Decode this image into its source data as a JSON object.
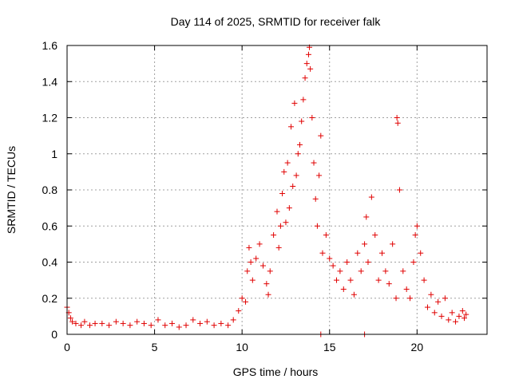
{
  "chart_data": {
    "type": "scatter",
    "title": "Day 114 of 2025, SRMTID for receiver falk",
    "xlabel": "GPS time / hours",
    "ylabel": "SRMTID / TECUs",
    "xlim": [
      0,
      24
    ],
    "ylim": [
      0,
      1.6
    ],
    "x_ticks": [
      0,
      5,
      10,
      15,
      20
    ],
    "x_tick_labels": [
      "0",
      "5",
      "10",
      "15",
      "20"
    ],
    "y_ticks": [
      0,
      0.2,
      0.4,
      0.6,
      0.8,
      1.0,
      1.2,
      1.4,
      1.6
    ],
    "y_tick_labels": [
      "0",
      "0.2",
      "0.4",
      "0.6",
      "0.8",
      "1",
      "1.2",
      "1.4",
      "1.6"
    ],
    "grid": true,
    "marker": "+",
    "color": "#e00000",
    "series": [
      {
        "name": "SRMTID",
        "x": [
          0.0,
          0.1,
          0.2,
          0.3,
          0.5,
          0.8,
          1.0,
          1.3,
          1.6,
          2.0,
          2.4,
          2.8,
          3.2,
          3.6,
          4.0,
          4.4,
          4.8,
          5.2,
          5.6,
          6.0,
          6.4,
          6.8,
          7.2,
          7.6,
          8.0,
          8.4,
          8.8,
          9.2,
          9.5,
          9.8,
          10.0,
          10.2,
          10.3,
          10.4,
          10.5,
          10.6,
          10.8,
          11.0,
          11.2,
          11.4,
          11.5,
          11.6,
          11.8,
          12.0,
          12.1,
          12.2,
          12.3,
          12.4,
          12.5,
          12.6,
          12.7,
          12.8,
          12.9,
          13.0,
          13.1,
          13.2,
          13.3,
          13.4,
          13.5,
          13.6,
          13.7,
          13.8,
          13.85,
          13.9,
          14.0,
          14.1,
          14.2,
          14.3,
          14.4,
          14.5,
          14.6,
          14.8,
          15.0,
          15.2,
          15.4,
          15.6,
          15.8,
          16.0,
          16.2,
          16.4,
          16.6,
          16.8,
          17.0,
          17.1,
          17.2,
          17.4,
          17.6,
          17.8,
          18.0,
          18.2,
          18.4,
          18.6,
          18.8,
          18.85,
          18.9,
          19.0,
          19.2,
          19.4,
          19.6,
          19.8,
          19.9,
          20.0,
          20.2,
          20.4,
          20.6,
          20.8,
          21.0,
          21.2,
          21.4,
          21.6,
          21.8,
          22.0,
          22.2,
          22.4,
          22.6,
          22.7,
          22.8,
          14.5,
          17.0
        ],
        "y": [
          0.15,
          0.12,
          0.09,
          0.07,
          0.06,
          0.05,
          0.07,
          0.05,
          0.06,
          0.06,
          0.05,
          0.07,
          0.06,
          0.05,
          0.07,
          0.06,
          0.05,
          0.08,
          0.05,
          0.06,
          0.04,
          0.05,
          0.08,
          0.06,
          0.07,
          0.05,
          0.06,
          0.05,
          0.08,
          0.13,
          0.2,
          0.18,
          0.35,
          0.48,
          0.4,
          0.3,
          0.42,
          0.5,
          0.38,
          0.28,
          0.22,
          0.35,
          0.55,
          0.68,
          0.48,
          0.6,
          0.78,
          0.9,
          0.62,
          0.95,
          0.7,
          1.15,
          0.82,
          1.28,
          0.88,
          1.0,
          1.05,
          1.18,
          1.3,
          1.42,
          1.5,
          1.55,
          1.59,
          1.47,
          1.2,
          0.95,
          0.75,
          0.6,
          0.88,
          1.1,
          0.45,
          0.55,
          0.42,
          0.38,
          0.3,
          0.35,
          0.25,
          0.4,
          0.3,
          0.22,
          0.45,
          0.35,
          0.5,
          0.65,
          0.4,
          0.76,
          0.55,
          0.3,
          0.45,
          0.35,
          0.28,
          0.5,
          0.2,
          1.2,
          1.17,
          0.8,
          0.35,
          0.25,
          0.2,
          0.4,
          0.55,
          0.6,
          0.45,
          0.3,
          0.15,
          0.22,
          0.12,
          0.18,
          0.1,
          0.2,
          0.08,
          0.12,
          0.07,
          0.1,
          0.13,
          0.09,
          0.11,
          0.0,
          0.0
        ]
      }
    ]
  }
}
